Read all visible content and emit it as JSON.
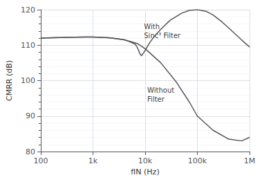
{
  "chart_data": {
    "type": "line",
    "xlabel": "fIN (Hz)",
    "ylabel": "CMRR (dB)",
    "log": "x",
    "grid": true,
    "xlim": [
      100,
      1000000
    ],
    "ylim": [
      80,
      120
    ],
    "xticks": [
      100,
      {
        "value": 1000,
        "label": "1k"
      },
      {
        "value": 10000,
        "label": "10k"
      },
      {
        "value": 100000,
        "label": "100k"
      },
      {
        "value": 1000000,
        "label": "1M"
      }
    ],
    "yticks": [
      80,
      90,
      100,
      110,
      120
    ],
    "series": [
      {
        "color": "#555555",
        "x": [
          100,
          300,
          700,
          1000,
          2000,
          4000,
          7000,
          10000,
          20000,
          40000,
          70000,
          100000,
          200000,
          400000,
          700000,
          1000000
        ],
        "values": [
          112.0,
          112.2,
          112.3,
          112.3,
          112.1,
          111.5,
          110.5,
          109.0,
          105.0,
          99.5,
          94.0,
          90.0,
          86.0,
          83.5,
          83.0,
          84.0
        ]
      },
      {
        "color": "#555555",
        "x": [
          100,
          300,
          700,
          1000,
          2000,
          3000,
          4000,
          5000,
          6000,
          6500,
          7000,
          7500,
          8000,
          8500,
          9000,
          10000,
          12000,
          15000,
          20000,
          30000,
          50000,
          70000,
          100000,
          150000,
          200000,
          300000,
          500000,
          700000,
          1000000
        ],
        "values": [
          112.0,
          112.2,
          112.3,
          112.3,
          112.1,
          111.8,
          111.5,
          111.0,
          110.5,
          110.2,
          109.5,
          108.5,
          107.5,
          107.0,
          107.5,
          108.5,
          110.5,
          112.5,
          114.5,
          117.0,
          119.0,
          119.8,
          120.0,
          119.5,
          118.5,
          116.5,
          113.5,
          111.5,
          109.5
        ]
      }
    ],
    "annotations": [
      {
        "text": "With\nSinc³ Filter",
        "x": 9500,
        "y": 116.5
      },
      {
        "text": "Without\nFilter",
        "x": 11000,
        "y": 98.5
      }
    ]
  }
}
